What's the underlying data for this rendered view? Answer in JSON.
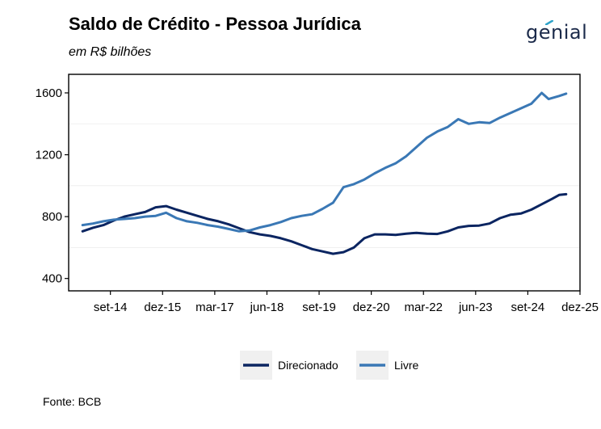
{
  "header": {
    "title": "Saldo de Crédito - Pessoa Jurídica",
    "subtitle": "em R$ bilhões",
    "logo_text": "genial"
  },
  "footer": {
    "source": "Fonte: BCB"
  },
  "colors": {
    "Direcionado": "#0b2561",
    "Livre": "#3a78b5",
    "logo_accent": "#2ea3c9"
  },
  "chart_data": {
    "type": "line",
    "title": "Saldo de Crédito - Pessoa Jurídica",
    "subtitle": "em R$ bilhões",
    "xlabel": "",
    "ylabel": "",
    "ylim": [
      320,
      1720
    ],
    "xlim": [
      "2013-09",
      "2025-12"
    ],
    "yticks": [
      400,
      800,
      1200,
      1600
    ],
    "xticks": [
      {
        "label": "set-14",
        "date": "2014-09"
      },
      {
        "label": "dez-15",
        "date": "2015-12"
      },
      {
        "label": "mar-17",
        "date": "2017-03"
      },
      {
        "label": "jun-18",
        "date": "2018-06"
      },
      {
        "label": "set-19",
        "date": "2019-09"
      },
      {
        "label": "dez-20",
        "date": "2020-12"
      },
      {
        "label": "mar-22",
        "date": "2022-03"
      },
      {
        "label": "jun-23",
        "date": "2023-06"
      },
      {
        "label": "set-24",
        "date": "2024-09"
      },
      {
        "label": "dez-25",
        "date": "2025-12"
      }
    ],
    "grid": true,
    "legend_position": "bottom",
    "series": [
      {
        "name": "Direcionado",
        "points": [
          [
            "2014-01",
            705
          ],
          [
            "2014-04",
            728
          ],
          [
            "2014-07",
            745
          ],
          [
            "2014-10",
            775
          ],
          [
            "2015-01",
            800
          ],
          [
            "2015-04",
            815
          ],
          [
            "2015-07",
            830
          ],
          [
            "2015-10",
            860
          ],
          [
            "2016-01",
            868
          ],
          [
            "2016-04",
            845
          ],
          [
            "2016-07",
            825
          ],
          [
            "2016-10",
            805
          ],
          [
            "2017-01",
            785
          ],
          [
            "2017-04",
            770
          ],
          [
            "2017-07",
            750
          ],
          [
            "2017-10",
            725
          ],
          [
            "2018-01",
            700
          ],
          [
            "2018-04",
            685
          ],
          [
            "2018-07",
            675
          ],
          [
            "2018-10",
            660
          ],
          [
            "2019-01",
            640
          ],
          [
            "2019-04",
            615
          ],
          [
            "2019-07",
            590
          ],
          [
            "2019-10",
            575
          ],
          [
            "2020-01",
            560
          ],
          [
            "2020-04",
            570
          ],
          [
            "2020-07",
            600
          ],
          [
            "2020-10",
            660
          ],
          [
            "2021-01",
            685
          ],
          [
            "2021-04",
            685
          ],
          [
            "2021-07",
            682
          ],
          [
            "2021-10",
            690
          ],
          [
            "2022-01",
            695
          ],
          [
            "2022-04",
            690
          ],
          [
            "2022-07",
            688
          ],
          [
            "2022-10",
            705
          ],
          [
            "2023-01",
            730
          ],
          [
            "2023-04",
            740
          ],
          [
            "2023-07",
            742
          ],
          [
            "2023-10",
            755
          ],
          [
            "2024-01",
            790
          ],
          [
            "2024-04",
            812
          ],
          [
            "2024-07",
            820
          ],
          [
            "2024-10",
            845
          ],
          [
            "2025-01",
            880
          ],
          [
            "2025-04",
            915
          ],
          [
            "2025-06",
            940
          ],
          [
            "2025-08",
            945
          ]
        ]
      },
      {
        "name": "Livre",
        "points": [
          [
            "2014-01",
            745
          ],
          [
            "2014-04",
            755
          ],
          [
            "2014-07",
            770
          ],
          [
            "2014-10",
            780
          ],
          [
            "2015-01",
            785
          ],
          [
            "2015-04",
            790
          ],
          [
            "2015-07",
            800
          ],
          [
            "2015-10",
            805
          ],
          [
            "2016-01",
            825
          ],
          [
            "2016-04",
            790
          ],
          [
            "2016-07",
            770
          ],
          [
            "2016-10",
            760
          ],
          [
            "2017-01",
            745
          ],
          [
            "2017-04",
            735
          ],
          [
            "2017-07",
            720
          ],
          [
            "2017-10",
            705
          ],
          [
            "2018-01",
            710
          ],
          [
            "2018-04",
            730
          ],
          [
            "2018-07",
            745
          ],
          [
            "2018-10",
            765
          ],
          [
            "2019-01",
            790
          ],
          [
            "2019-04",
            805
          ],
          [
            "2019-07",
            815
          ],
          [
            "2019-10",
            850
          ],
          [
            "2020-01",
            890
          ],
          [
            "2020-04",
            990
          ],
          [
            "2020-07",
            1010
          ],
          [
            "2020-10",
            1040
          ],
          [
            "2021-01",
            1080
          ],
          [
            "2021-04",
            1115
          ],
          [
            "2021-07",
            1145
          ],
          [
            "2021-10",
            1190
          ],
          [
            "2022-01",
            1250
          ],
          [
            "2022-04",
            1310
          ],
          [
            "2022-07",
            1350
          ],
          [
            "2022-10",
            1380
          ],
          [
            "2023-01",
            1430
          ],
          [
            "2023-04",
            1400
          ],
          [
            "2023-07",
            1410
          ],
          [
            "2023-10",
            1405
          ],
          [
            "2024-01",
            1440
          ],
          [
            "2024-04",
            1470
          ],
          [
            "2024-07",
            1500
          ],
          [
            "2024-10",
            1530
          ],
          [
            "2025-01",
            1600
          ],
          [
            "2025-03",
            1560
          ],
          [
            "2025-06",
            1580
          ],
          [
            "2025-08",
            1595
          ]
        ]
      }
    ]
  }
}
